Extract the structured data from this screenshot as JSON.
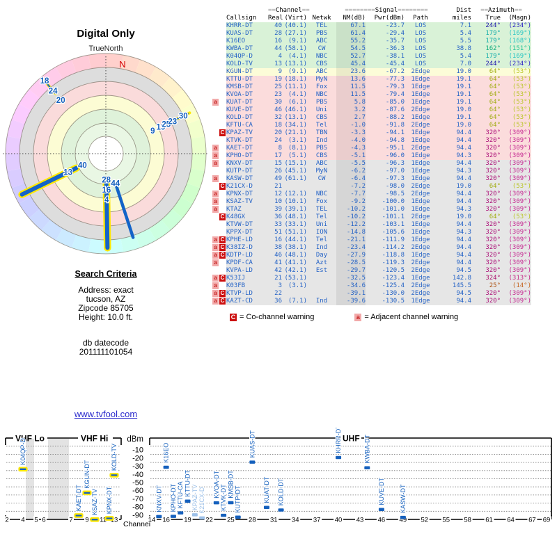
{
  "search_criteria": {
    "title": "Search Criteria",
    "lines": [
      "Address: exact",
      "tucson, AZ",
      "Zipcode 85705",
      "Height: 10.0 ft."
    ],
    "datecode_label": "db datecode",
    "datecode": "201111101054"
  },
  "link_text": "www.tvfool.com",
  "table": {
    "group_headers": {
      "channel": "==Channel==",
      "signal": "========Signal========",
      "dist": "Dist",
      "azimuth": "==Azimuth=="
    },
    "columns": [
      "Callsign",
      "Real",
      "(Virt)",
      "Netwk",
      "NM(dB)",
      "Pwr(dBm)",
      "Path",
      "miles",
      "True",
      "(Magn)"
    ],
    "legend": [
      {
        "symbol": "C",
        "text": "= Co-channel warning"
      },
      {
        "symbol": "a",
        "text": "= Adjacent channel warning"
      }
    ],
    "rows": [
      {
        "callsign": "KHRR-DT",
        "real": "40",
        "virt": "(40.1)",
        "netwk": "TEL",
        "nm": "67.1",
        "pwr": "-23.7",
        "path": "LOS",
        "miles": "7.1",
        "true": "244°",
        "magn": "(234°)",
        "az": 244,
        "band": "green",
        "warn": ""
      },
      {
        "callsign": "KUAS-DT",
        "real": "28",
        "virt": "(27.1)",
        "netwk": "PBS",
        "nm": "61.4",
        "pwr": "-29.4",
        "path": "LOS",
        "miles": "5.4",
        "true": "179°",
        "magn": "(169°)",
        "az": 179,
        "band": "green",
        "warn": ""
      },
      {
        "callsign": "K16EO",
        "real": "16",
        "virt": "(9.1)",
        "netwk": "ABC",
        "nm": "55.2",
        "pwr": "-35.7",
        "path": "LOS",
        "miles": "5.5",
        "true": "179°",
        "magn": "(168°)",
        "az": 179,
        "band": "green",
        "warn": ""
      },
      {
        "callsign": "KWBA-DT",
        "real": "44",
        "virt": "(58.1)",
        "netwk": "CW",
        "nm": "54.5",
        "pwr": "-36.3",
        "path": "LOS",
        "miles": "38.8",
        "true": "162°",
        "magn": "(151°)",
        "az": 162,
        "band": "green",
        "warn": ""
      },
      {
        "callsign": "K04QP-D",
        "real": "4",
        "virt": "(4.1)",
        "netwk": "NBC",
        "nm": "52.7",
        "pwr": "-38.1",
        "path": "LOS",
        "miles": "5.4",
        "true": "179°",
        "magn": "(169°)",
        "az": 179,
        "band": "green",
        "warn": ""
      },
      {
        "callsign": "KOLD-TV",
        "real": "13",
        "virt": "(13.1)",
        "netwk": "CBS",
        "nm": "45.4",
        "pwr": "-45.4",
        "path": "LOS",
        "miles": "7.0",
        "true": "244°",
        "magn": "(234°)",
        "az": 244,
        "band": "green",
        "warn": ""
      },
      {
        "callsign": "KGUN-DT",
        "real": "9",
        "virt": "(9.1)",
        "netwk": "ABC",
        "nm": "23.6",
        "pwr": "-67.2",
        "path": "2Edge",
        "miles": "19.0",
        "true": "64°",
        "magn": "(53°)",
        "az": 64,
        "band": "yellow",
        "warn": ""
      },
      {
        "callsign": "KTTU-DT",
        "real": "19",
        "virt": "(18.1)",
        "netwk": "MyN",
        "nm": "13.6",
        "pwr": "-77.3",
        "path": "1Edge",
        "miles": "19.1",
        "true": "64°",
        "magn": "(53°)",
        "az": 64,
        "band": "pink",
        "warn": ""
      },
      {
        "callsign": "KMSB-DT",
        "real": "25",
        "virt": "(11.1)",
        "netwk": "Fox",
        "nm": "11.5",
        "pwr": "-79.3",
        "path": "1Edge",
        "miles": "19.1",
        "true": "64°",
        "magn": "(53°)",
        "az": 64,
        "band": "pink",
        "warn": ""
      },
      {
        "callsign": "KVOA-DT",
        "real": "23",
        "virt": "(4.1)",
        "netwk": "NBC",
        "nm": "11.5",
        "pwr": "-79.4",
        "path": "1Edge",
        "miles": "19.1",
        "true": "64°",
        "magn": "(53°)",
        "az": 64,
        "band": "pink",
        "warn": ""
      },
      {
        "callsign": "KUAT-DT",
        "real": "30",
        "virt": "(6.1)",
        "netwk": "PBS",
        "nm": "5.8",
        "pwr": "-85.0",
        "path": "1Edge",
        "miles": "19.1",
        "true": "64°",
        "magn": "(53°)",
        "az": 64,
        "band": "pink",
        "warn": "a"
      },
      {
        "callsign": "KUVE-DT",
        "real": "46",
        "virt": "(46.1)",
        "netwk": "Uni",
        "nm": "3.2",
        "pwr": "-87.6",
        "path": "2Edge",
        "miles": "19.0",
        "true": "64°",
        "magn": "(53°)",
        "az": 64,
        "band": "pink",
        "warn": ""
      },
      {
        "callsign": "KOLD-DT",
        "real": "32",
        "virt": "(13.1)",
        "netwk": "CBS",
        "nm": "2.7",
        "pwr": "-88.2",
        "path": "1Edge",
        "miles": "19.1",
        "true": "64°",
        "magn": "(53°)",
        "az": 64,
        "band": "pink",
        "warn": ""
      },
      {
        "callsign": "KFTU-CA",
        "real": "18",
        "virt": "(34.1)",
        "netwk": "Tel",
        "nm": "-1.0",
        "pwr": "-91.8",
        "path": "2Edge",
        "miles": "19.0",
        "true": "64°",
        "magn": "(53°)",
        "az": 64,
        "band": "pink",
        "warn": ""
      },
      {
        "callsign": "KPAZ-TV",
        "real": "20",
        "virt": "(21.1)",
        "netwk": "TBN",
        "nm": "-3.3",
        "pwr": "-94.1",
        "path": "1Edge",
        "miles": "94.4",
        "true": "320°",
        "magn": "(309°)",
        "az": 320,
        "band": "pink",
        "warn": "C"
      },
      {
        "callsign": "KTVK-DT",
        "real": "24",
        "virt": "(3.1)",
        "netwk": "Ind",
        "nm": "-4.0",
        "pwr": "-94.8",
        "path": "1Edge",
        "miles": "94.4",
        "true": "320°",
        "magn": "(309°)",
        "az": 320,
        "band": "pink",
        "warn": ""
      },
      {
        "callsign": "KAET-DT",
        "real": "8",
        "virt": "(8.1)",
        "netwk": "PBS",
        "nm": "-4.3",
        "pwr": "-95.1",
        "path": "2Edge",
        "miles": "94.4",
        "true": "320°",
        "magn": "(309°)",
        "az": 320,
        "band": "pink",
        "warn": "a"
      },
      {
        "callsign": "KPHO-DT",
        "real": "17",
        "virt": "(5.1)",
        "netwk": "CBS",
        "nm": "-5.1",
        "pwr": "-96.0",
        "path": "1Edge",
        "miles": "94.3",
        "true": "320°",
        "magn": "(309°)",
        "az": 320,
        "band": "pink",
        "warn": "a"
      },
      {
        "callsign": "KNXV-DT",
        "real": "15",
        "virt": "(15.1)",
        "netwk": "ABC",
        "nm": "-5.5",
        "pwr": "-96.3",
        "path": "1Edge",
        "miles": "94.4",
        "true": "320°",
        "magn": "(309°)",
        "az": 320,
        "band": "gray",
        "warn": "a"
      },
      {
        "callsign": "KUTP-DT",
        "real": "26",
        "virt": "(45.1)",
        "netwk": "MyN",
        "nm": "-6.2",
        "pwr": "-97.0",
        "path": "1Edge",
        "miles": "94.3",
        "true": "320°",
        "magn": "(309°)",
        "az": 320,
        "band": "gray",
        "warn": ""
      },
      {
        "callsign": "KASW-DT",
        "real": "49",
        "virt": "(61.1)",
        "netwk": "CW",
        "nm": "-6.4",
        "pwr": "-97.3",
        "path": "1Edge",
        "miles": "94.4",
        "true": "320°",
        "magn": "(309°)",
        "az": 320,
        "band": "gray",
        "warn": "a"
      },
      {
        "callsign": "K21CX-D",
        "real": "21",
        "virt": "",
        "netwk": "",
        "nm": "-7.2",
        "pwr": "-98.0",
        "path": "2Edge",
        "miles": "19.0",
        "true": "64°",
        "magn": "(53°)",
        "az": 64,
        "band": "gray",
        "warn": "C"
      },
      {
        "callsign": "KPNX-DT",
        "real": "12",
        "virt": "(12.1)",
        "netwk": "NBC",
        "nm": "-7.7",
        "pwr": "-98.5",
        "path": "2Edge",
        "miles": "94.4",
        "true": "320°",
        "magn": "(309°)",
        "az": 320,
        "band": "gray",
        "warn": "a"
      },
      {
        "callsign": "KSAZ-TV",
        "real": "10",
        "virt": "(10.1)",
        "netwk": "Fox",
        "nm": "-9.2",
        "pwr": "-100.0",
        "path": "1Edge",
        "miles": "94.4",
        "true": "320°",
        "magn": "(309°)",
        "az": 320,
        "band": "gray",
        "warn": "a"
      },
      {
        "callsign": "KTAZ",
        "real": "39",
        "virt": "(39.1)",
        "netwk": "TEL",
        "nm": "-10.2",
        "pwr": "-101.0",
        "path": "1Edge",
        "miles": "94.3",
        "true": "320°",
        "magn": "(309°)",
        "az": 320,
        "band": "gray",
        "warn": "a"
      },
      {
        "callsign": "K48GX",
        "real": "36",
        "virt": "(48.1)",
        "netwk": "Tel",
        "nm": "-10.2",
        "pwr": "-101.1",
        "path": "2Edge",
        "miles": "19.0",
        "true": "64°",
        "magn": "(53°)",
        "az": 64,
        "band": "gray",
        "warn": "C"
      },
      {
        "callsign": "KTVW-DT",
        "real": "33",
        "virt": "(33.1)",
        "netwk": "Uni",
        "nm": "-12.2",
        "pwr": "-103.1",
        "path": "1Edge",
        "miles": "94.4",
        "true": "320°",
        "magn": "(309°)",
        "az": 320,
        "band": "gray",
        "warn": ""
      },
      {
        "callsign": "KPPX-DT",
        "real": "51",
        "virt": "(51.1)",
        "netwk": "ION",
        "nm": "-14.8",
        "pwr": "-105.6",
        "path": "1Edge",
        "miles": "94.3",
        "true": "320°",
        "magn": "(309°)",
        "az": 320,
        "band": "gray",
        "warn": ""
      },
      {
        "callsign": "KPHE-LD",
        "real": "16",
        "virt": "(44.1)",
        "netwk": "Tel",
        "nm": "-21.1",
        "pwr": "-111.9",
        "path": "1Edge",
        "miles": "94.4",
        "true": "320°",
        "magn": "(309°)",
        "az": 320,
        "band": "gray",
        "warn": "aC"
      },
      {
        "callsign": "K38IZ-D",
        "real": "38",
        "virt": "(38.1)",
        "netwk": "Ind",
        "nm": "-23.4",
        "pwr": "-114.2",
        "path": "2Edge",
        "miles": "94.4",
        "true": "320°",
        "magn": "(309°)",
        "az": 320,
        "band": "gray",
        "warn": "aC"
      },
      {
        "callsign": "KDTP-LD",
        "real": "46",
        "virt": "(48.1)",
        "netwk": "Day",
        "nm": "-27.9",
        "pwr": "-118.8",
        "path": "1Edge",
        "miles": "94.4",
        "true": "320°",
        "magn": "(309°)",
        "az": 320,
        "band": "gray",
        "warn": "aC"
      },
      {
        "callsign": "KPDF-CA",
        "real": "41",
        "virt": "(41.1)",
        "netwk": "Azt",
        "nm": "-28.5",
        "pwr": "-119.3",
        "path": "2Edge",
        "miles": "94.4",
        "true": "320°",
        "magn": "(309°)",
        "az": 320,
        "band": "gray",
        "warn": "a"
      },
      {
        "callsign": "KVPA-LD",
        "real": "42",
        "virt": "(42.1)",
        "netwk": "Est",
        "nm": "-29.7",
        "pwr": "-120.5",
        "path": "2Edge",
        "miles": "94.5",
        "true": "320°",
        "magn": "(309°)",
        "az": 320,
        "band": "gray",
        "warn": ""
      },
      {
        "callsign": "K53IJ",
        "real": "21",
        "virt": "(53.1)",
        "netwk": "",
        "nm": "-32.5",
        "pwr": "-123.4",
        "path": "1Edge",
        "miles": "142.8",
        "true": "324°",
        "magn": "(313°)",
        "az": 324,
        "band": "gray",
        "warn": "aC"
      },
      {
        "callsign": "K03FB",
        "real": "3",
        "virt": "(3.1)",
        "netwk": "",
        "nm": "-34.6",
        "pwr": "-125.4",
        "path": "2Edge",
        "miles": "145.5",
        "true": "25°",
        "magn": "(14°)",
        "az": 25,
        "band": "gray",
        "warn": "a"
      },
      {
        "callsign": "KTVP-LD",
        "real": "22",
        "virt": "",
        "netwk": "",
        "nm": "-39.1",
        "pwr": "-130.0",
        "path": "2Edge",
        "miles": "94.5",
        "true": "320°",
        "magn": "(309°)",
        "az": 320,
        "band": "gray",
        "warn": "aC"
      },
      {
        "callsign": "KAZT-CD",
        "real": "36",
        "virt": "(7.1)",
        "netwk": "Ind",
        "nm": "-39.6",
        "pwr": "-130.5",
        "path": "1Edge",
        "miles": "94.4",
        "true": "320°",
        "magn": "(309°)",
        "az": 320,
        "band": "gray",
        "warn": "aC"
      }
    ]
  },
  "chart_data": [
    {
      "type": "polar",
      "title": "Digital Only",
      "orientation_label": "TrueNorth",
      "north_marker": "N",
      "ring_bands_outer_to_inner": [
        "hue-wheel",
        "#DDDDDD",
        "#FADBDB",
        "#FCFCD4",
        "#DFF2DA",
        "#E9F7E4",
        "#FFFFFF"
      ],
      "spokes": [
        {
          "azimuth_deg": 244,
          "style": "strong",
          "r0": 0.33,
          "r1": 0.93,
          "channels": [
            {
              "ch": "40",
              "r": 0.26
            },
            {
              "ch": "13",
              "r": 0.42
            }
          ]
        },
        {
          "azimuth_deg": 179,
          "style": "strong",
          "r0": 0.3,
          "r1": 0.94,
          "channels": [
            {
              "ch": "28",
              "r": 0.26
            },
            {
              "ch": "16",
              "r": 0.36
            },
            {
              "ch": "4",
              "r": 0.46
            }
          ]
        },
        {
          "azimuth_deg": 162,
          "style": "medium",
          "r0": 0.34,
          "r1": 0.88,
          "channels": [
            {
              "ch": "44",
              "r": 0.31
            }
          ]
        },
        {
          "azimuth_deg": 64,
          "style": "weak",
          "r0": 0.64,
          "r1": 0.93,
          "channels": [
            {
              "ch": "9",
              "r": 0.52
            },
            {
              "ch": "19",
              "r": 0.61
            },
            {
              "ch": "25",
              "r": 0.67
            },
            {
              "ch": "23",
              "r": 0.74
            },
            {
              "ch": "30",
              "r": 0.86
            }
          ]
        },
        {
          "azimuth_deg": 320,
          "style": "weak",
          "r0": 0.78,
          "r1": 0.95,
          "channels": [
            {
              "ch": "20",
              "r": 0.7
            },
            {
              "ch": "24",
              "r": 0.82
            },
            {
              "ch": "18",
              "r": 0.95
            }
          ]
        }
      ]
    },
    {
      "type": "bar",
      "ylabel": "dBm",
      "xlabel": "Channel",
      "y_ticks": [
        -10,
        -20,
        -30,
        -40,
        -50,
        -60,
        -70,
        -80,
        -90
      ],
      "ylim": [
        0,
        -100
      ],
      "panels": [
        {
          "band_labels": [
            "VHF Lo",
            "VHF Hi"
          ],
          "ticks": [
            2,
            4,
            5,
            6,
            7,
            9,
            11,
            13
          ],
          "gap_bands_channels": [
            [
              4.3,
              5.4
            ],
            [
              6.5,
              9.2
            ]
          ],
          "bars": [
            {
              "callsign": "K04QP-D",
              "ch": 4,
              "dbm": -38.1,
              "outlined": true
            },
            {
              "callsign": "KAET-DT",
              "ch": 8,
              "dbm": -95.1,
              "outlined": true
            },
            {
              "callsign": "KGUN-DT",
              "ch": 9,
              "dbm": -67.2,
              "outlined": true
            },
            {
              "callsign": "KSAZ-TV",
              "ch": 10,
              "dbm": -100.0,
              "outlined": true
            },
            {
              "callsign": "KPNX-DT",
              "ch": 12,
              "dbm": -98.5,
              "outlined": true
            },
            {
              "callsign": "KOLD-TV",
              "ch": 13,
              "dbm": -45.4,
              "outlined": true
            }
          ]
        },
        {
          "band_labels": [
            "UHF"
          ],
          "ticks": [
            14,
            16,
            19,
            22,
            25,
            28,
            31,
            34,
            37,
            40,
            43,
            46,
            49,
            52,
            55,
            58,
            61,
            64,
            67,
            69
          ],
          "gap_bands_channels": [],
          "bars": [
            {
              "callsign": "KNXV-DT",
              "ch": 15,
              "dbm": -96.3
            },
            {
              "callsign": "K16EO",
              "ch": 16,
              "dbm": -35.7
            },
            {
              "callsign": "KPHO-DT",
              "ch": 17,
              "dbm": -96.0
            },
            {
              "callsign": "KFTU-CA",
              "ch": 18,
              "dbm": -91.8
            },
            {
              "callsign": "KTTU-DT",
              "ch": 19,
              "dbm": -77.3
            },
            {
              "callsign": "KPAZ-TV",
              "ch": 20,
              "dbm": -94.1,
              "faded": true
            },
            {
              "callsign": "K21CX-D",
              "ch": 21,
              "dbm": -98.0,
              "faded": true
            },
            {
              "callsign": "KVOA-DT",
              "ch": 23,
              "dbm": -79.4
            },
            {
              "callsign": "KTVK-DT",
              "ch": 24,
              "dbm": -94.8
            },
            {
              "callsign": "KMSB-DT",
              "ch": 25,
              "dbm": -79.3
            },
            {
              "callsign": "KUTP-DT",
              "ch": 26,
              "dbm": -97.0
            },
            {
              "callsign": "KUAS-DT",
              "ch": 28,
              "dbm": -29.4
            },
            {
              "callsign": "KUAT-DT",
              "ch": 30,
              "dbm": -85.0
            },
            {
              "callsign": "KOLD-DT",
              "ch": 32,
              "dbm": -88.2
            },
            {
              "callsign": "KHRR-DT",
              "ch": 40,
              "dbm": -23.7
            },
            {
              "callsign": "KWBA-DT",
              "ch": 44,
              "dbm": -36.3
            },
            {
              "callsign": "KUVE-DT",
              "ch": 46,
              "dbm": -87.6
            },
            {
              "callsign": "KASW-DT",
              "ch": 49,
              "dbm": -97.3
            }
          ]
        }
      ]
    }
  ],
  "colors": {
    "table_text": "#2563C6",
    "bar_blue": "#1560BD",
    "bar_faded": "#9CC0E8",
    "outline_yellow": "#FFE800",
    "north_red": "#D40000"
  }
}
